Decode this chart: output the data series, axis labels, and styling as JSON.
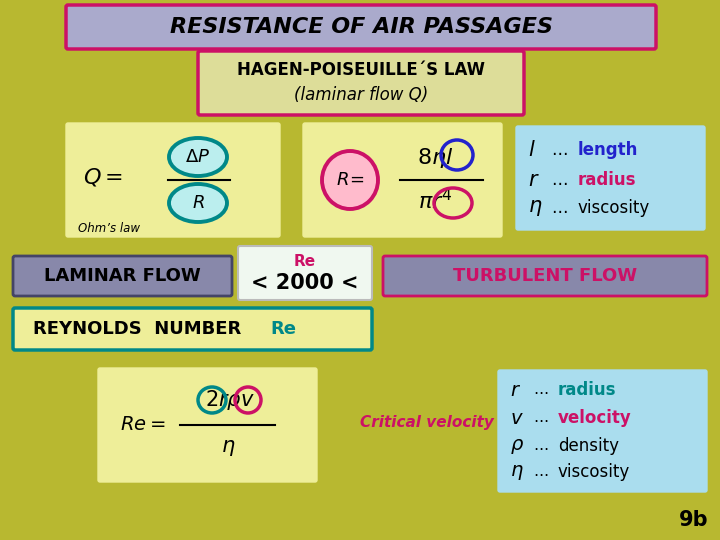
{
  "bg_color": "#b8b830",
  "title_text": "RESISTANCE OF AIR PASSAGES",
  "title_box_fc": "#aaaacc",
  "title_border_color": "#cc1166",
  "subtitle_line1": "HAGEN-POISEUILLE´S LAW",
  "subtitle_line2": "(laminar flow Q)",
  "subtitle_box_fc": "#dddd99",
  "subtitle_border_color": "#cc1166",
  "ohm_box_color": "#eeee99",
  "ohm_label": "Ohm’s law",
  "legend1_box_color": "#aaddee",
  "laminar_box_color": "#8888aa",
  "laminar_text": "LAMINAR FLOW",
  "re_box_color": "#eeffee",
  "re_label": "Re",
  "re_2000": "< 2000 <",
  "turbulent_box_color": "#8888aa",
  "turbulent_text": "TURBULENT FLOW",
  "reynolds_box_fc": "#eeee99",
  "reynolds_border": "#008888",
  "formula2_box_color": "#eeee99",
  "critical_text": "Critical velocity",
  "legend2_box_color": "#aaddee",
  "page_num": "9b"
}
